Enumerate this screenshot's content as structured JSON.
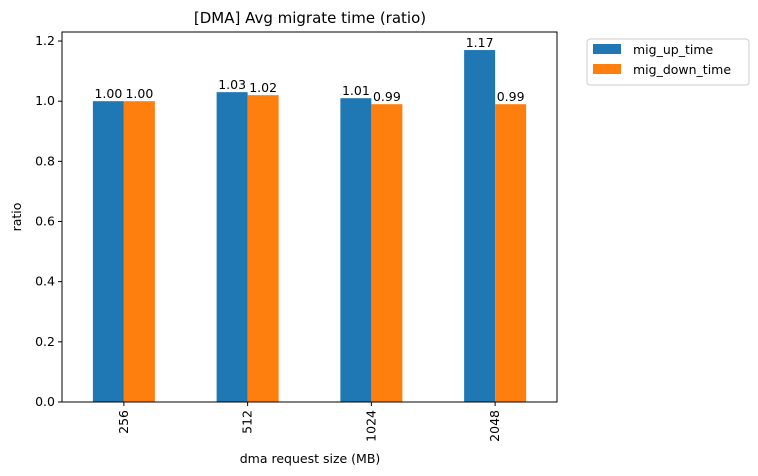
{
  "chart_data": {
    "type": "bar",
    "title": "[DMA] Avg migrate time (ratio)",
    "xlabel": "dma request size (MB)",
    "ylabel": "ratio",
    "categories": [
      "256",
      "512",
      "1024",
      "2048"
    ],
    "series": [
      {
        "name": "mig_up_time",
        "color": "#1f77b4",
        "values": [
          1.0,
          1.03,
          1.01,
          1.17
        ],
        "labels": [
          "1.00",
          "1.03",
          "1.01",
          "1.17"
        ]
      },
      {
        "name": "mig_down_time",
        "color": "#ff7f0e",
        "values": [
          1.0,
          1.02,
          0.99,
          0.99
        ],
        "labels": [
          "1.00",
          "1.02",
          "0.99",
          "0.99"
        ]
      }
    ],
    "ylim": [
      0,
      1.23
    ],
    "yticks": [
      0.0,
      0.2,
      0.4,
      0.6,
      0.8,
      1.0,
      1.2
    ],
    "ytick_labels": [
      "0.0",
      "0.2",
      "0.4",
      "0.6",
      "0.8",
      "1.0",
      "1.2"
    ],
    "grid": false,
    "legend_position": "outside-top-right",
    "xtick_rotation": "vertical"
  }
}
